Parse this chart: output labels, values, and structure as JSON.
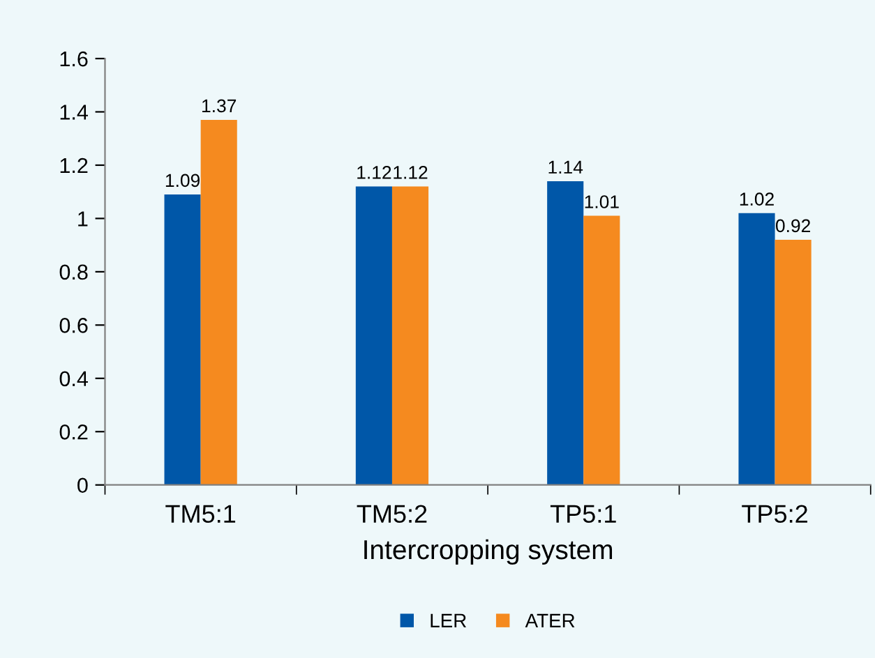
{
  "chart_data": {
    "type": "bar",
    "xlabel": "Intercropping system",
    "categories": [
      "TM5:1",
      "TM5:2",
      "TP5:1",
      "TP5:2"
    ],
    "series": [
      {
        "name": "LER",
        "color": "#0057a8",
        "values": [
          1.09,
          1.12,
          1.14,
          1.02
        ]
      },
      {
        "name": "ATER",
        "color": "#f58a1f",
        "values": [
          1.37,
          1.12,
          1.01,
          0.92
        ]
      }
    ],
    "ylim": [
      0,
      1.6
    ],
    "yticks": [
      0,
      0.2,
      0.4,
      0.6,
      0.8,
      1,
      1.2,
      1.4,
      1.6
    ],
    "data_labels": true,
    "legend": "bottom",
    "grid": false
  }
}
